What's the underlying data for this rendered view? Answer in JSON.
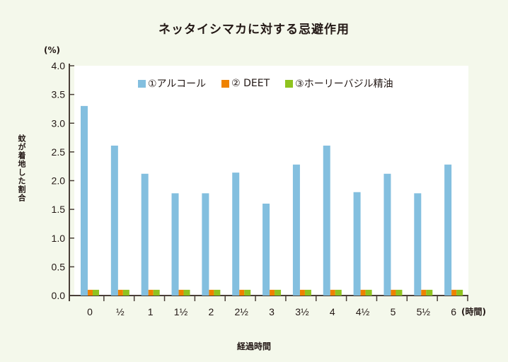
{
  "chart_data": {
    "type": "bar",
    "title": "ネッタイシマカに対する忌避作用",
    "ylabel": "蚊が着地した割合",
    "yunit": "(%)",
    "xlabel": "経過時間",
    "xunit": "(時間)",
    "ylim": [
      0,
      4.0
    ],
    "yticks": [
      "0.0",
      "0.5",
      "1.0",
      "1.5",
      "2.0",
      "2.5",
      "3.0",
      "3.5",
      "4.0"
    ],
    "categories": [
      "0",
      "½",
      "1",
      "1½",
      "2",
      "2½",
      "3",
      "3½",
      "4",
      "4½",
      "5",
      "5½",
      "6"
    ],
    "legend_position": "top",
    "series": [
      {
        "name": "①アルコール",
        "color": "#83bfdf",
        "values": [
          3.3,
          2.61,
          2.12,
          1.78,
          1.78,
          2.14,
          1.6,
          2.28,
          2.61,
          1.8,
          2.12,
          1.78,
          2.28
        ]
      },
      {
        "name": "② DEET",
        "color": "#ef8200",
        "values": [
          0.1,
          0.1,
          0.1,
          0.1,
          0.1,
          0.1,
          0.1,
          0.1,
          0.1,
          0.1,
          0.1,
          0.1,
          0.1
        ]
      },
      {
        "name": "③ホーリーバジル精油",
        "color": "#8fc31f",
        "values": [
          0.1,
          0.1,
          0.1,
          0.1,
          0.1,
          0.1,
          0.1,
          0.1,
          0.1,
          0.1,
          0.1,
          0.1,
          0.1
        ]
      }
    ]
  }
}
